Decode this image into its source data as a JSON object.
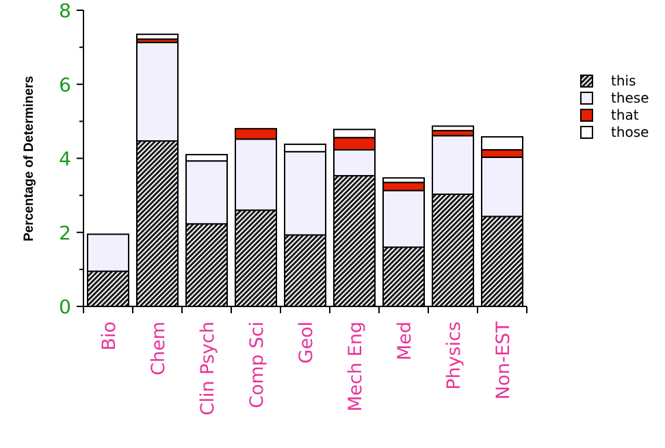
{
  "chart_data": {
    "type": "bar",
    "stacked": true,
    "ylabel": "Percentage of Determiners",
    "xlabel": "",
    "ylim": [
      0,
      8
    ],
    "yticks": [
      0,
      2,
      4,
      6,
      8
    ],
    "categories": [
      "Bio",
      "Chem",
      "Clin Psych",
      "Comp Sci",
      "Geol",
      "Mech Eng",
      "Med",
      "Physics",
      "Non-EST"
    ],
    "series": [
      {
        "name": "this",
        "values": [
          0.95,
          4.47,
          2.23,
          2.6,
          1.93,
          3.53,
          1.6,
          3.03,
          2.43
        ],
        "fill": "hatch",
        "color": "#000000"
      },
      {
        "name": "these",
        "values": [
          1.0,
          2.66,
          1.7,
          1.92,
          2.25,
          0.7,
          1.53,
          1.58,
          1.6
        ],
        "fill": "solid",
        "color": "#f0f0ff"
      },
      {
        "name": "that",
        "values": [
          0.0,
          0.09,
          0.0,
          0.28,
          0.0,
          0.33,
          0.22,
          0.14,
          0.2
        ],
        "fill": "solid",
        "color": "#e62000"
      },
      {
        "name": "those",
        "values": [
          0.0,
          0.13,
          0.17,
          0.0,
          0.2,
          0.22,
          0.12,
          0.12,
          0.35
        ],
        "fill": "solid",
        "color": "#ffffff"
      }
    ],
    "grid": false,
    "legend_position": "right",
    "colors": {
      "ytick_text": "#1a9a1a",
      "xtick_text": "#e8339a",
      "axis": "#000000"
    }
  }
}
